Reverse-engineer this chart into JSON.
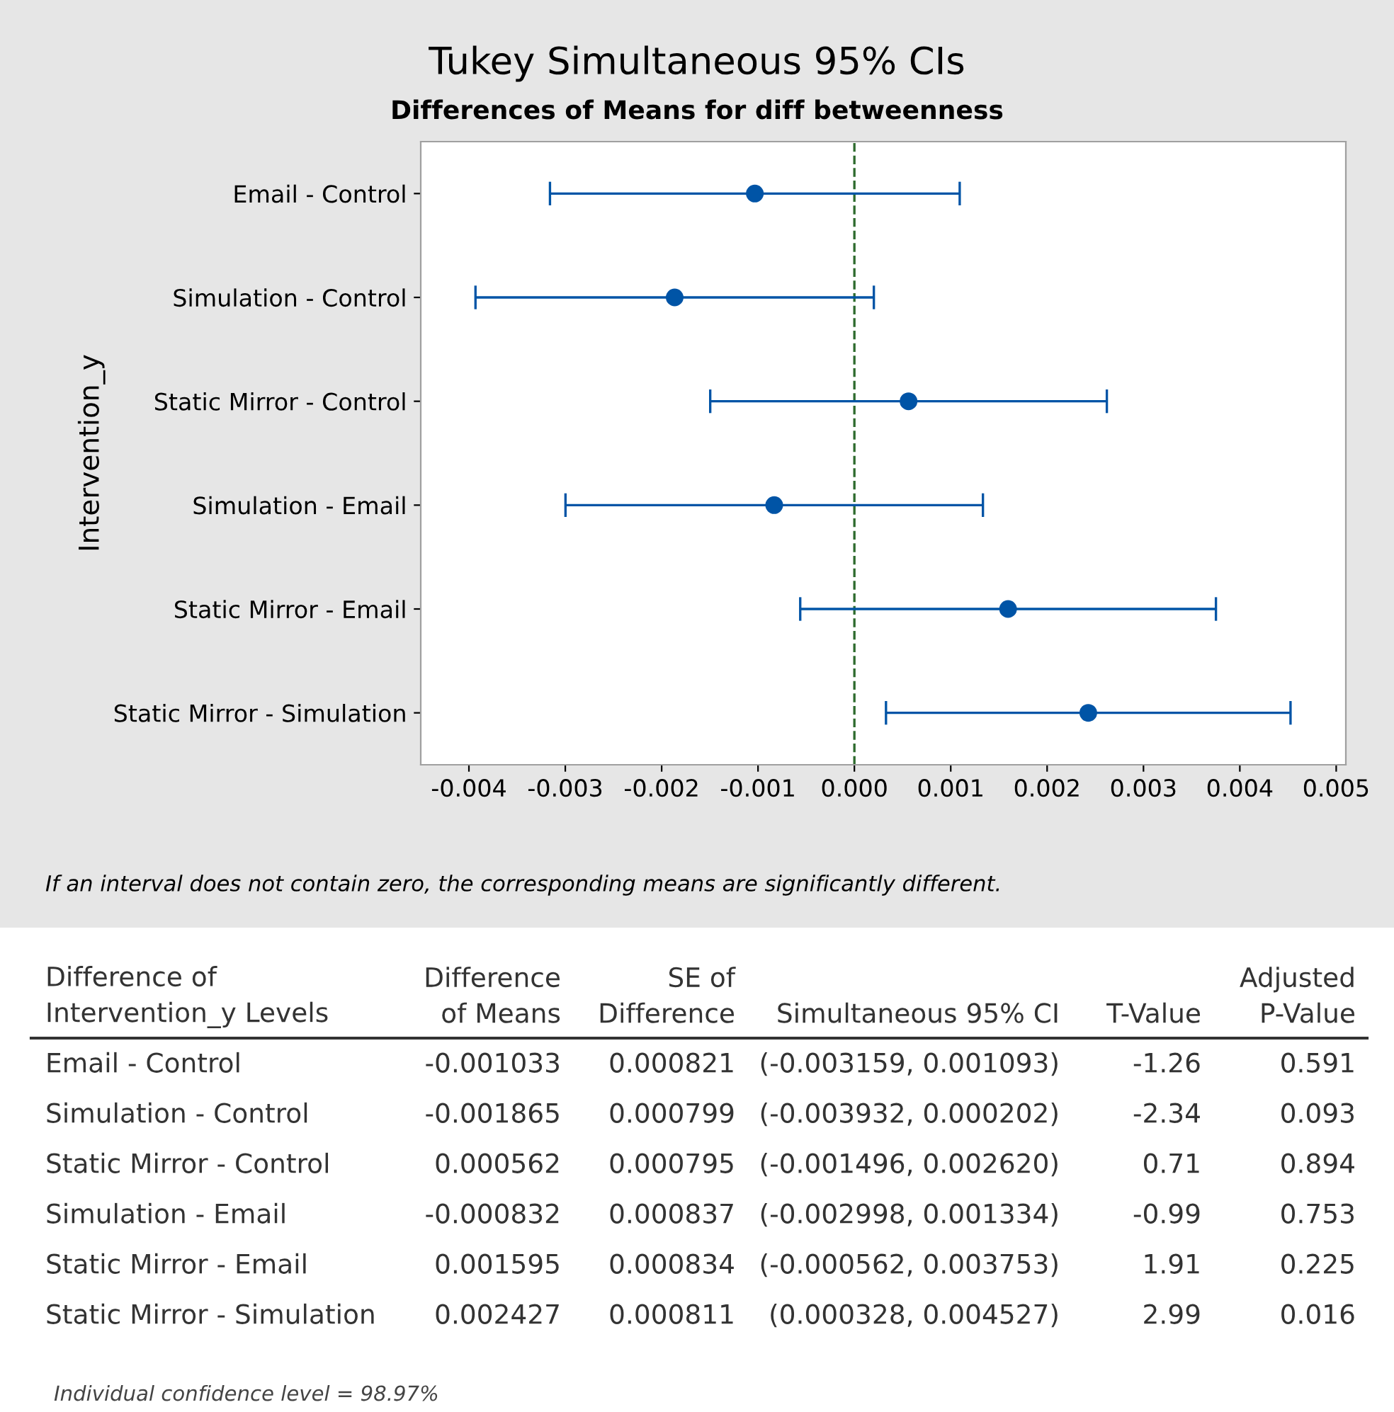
{
  "chart_data": {
    "type": "scatter",
    "title": "Tukey Simultaneous 95% CIs",
    "subtitle": "Differences of Means for diff betweenness",
    "ylabel": "Intervention_y",
    "categories": [
      "Email - Control",
      "Simulation - Control",
      "Static Mirror - Control",
      "Simulation - Email",
      "Static Mirror - Email",
      "Static Mirror - Simulation"
    ],
    "values": [
      -0.001033,
      -0.001865,
      0.000562,
      -0.000832,
      0.001595,
      0.002427
    ],
    "errors": [
      0.002126,
      0.002067,
      0.002058,
      0.002166,
      0.002157,
      0.002099
    ],
    "orientation": "horizontal",
    "color": "#0054a6",
    "marker": "circle",
    "grid": false,
    "legend": false,
    "xlim": [
      -0.0045,
      0.0051
    ],
    "xticks": [
      {
        "value": -0.004,
        "label": "-0.004"
      },
      {
        "value": -0.003,
        "label": "-0.003"
      },
      {
        "value": -0.002,
        "label": "-0.002"
      },
      {
        "value": -0.001,
        "label": "-0.001"
      },
      {
        "value": 0,
        "label": "0.000"
      },
      {
        "value": 0.001,
        "label": "0.001"
      },
      {
        "value": 0.002,
        "label": "0.002"
      },
      {
        "value": 0.003,
        "label": "0.003"
      },
      {
        "value": 0.004,
        "label": "0.004"
      },
      {
        "value": 0.005,
        "label": "0.005"
      }
    ],
    "ref_lines": [
      {
        "axis": "x",
        "value": 0,
        "color": "#2e6b2e",
        "line_style": "dashed"
      }
    ],
    "annotations": [
      "If an interval does not contain zero, the corresponding means are significantly different.",
      "Difference of\nIntervention_y Levels",
      "Difference\nof Means",
      "SE of\nDifference",
      "Simultaneous 95% CI",
      "T-Value",
      "Adjusted\nP-Value",
      "Email - Control",
      "-0.001033",
      "0.000821",
      "(-0.003159, 0.001093)",
      "-1.26",
      "0.591",
      "Simulation - Control",
      "-0.001865",
      "0.000799",
      "(-0.003932, 0.000202)",
      "-2.34",
      "0.093",
      "Static Mirror - Control",
      "0.000562",
      "0.000795",
      "(-0.001496, 0.002620)",
      "0.71",
      "0.894",
      "Simulation - Email",
      "-0.000832",
      "0.000837",
      "(-0.002998, 0.001334)",
      "-0.99",
      "0.753",
      "Static Mirror - Email",
      "0.001595",
      "0.000834",
      "(-0.000562, 0.003753)",
      "1.91",
      "0.225",
      "Static Mirror - Simulation",
      "0.002427",
      "0.000811",
      "(0.000328, 0.004527)",
      "2.99",
      "0.016",
      "Individual confidence level = 98.97%"
    ]
  }
}
